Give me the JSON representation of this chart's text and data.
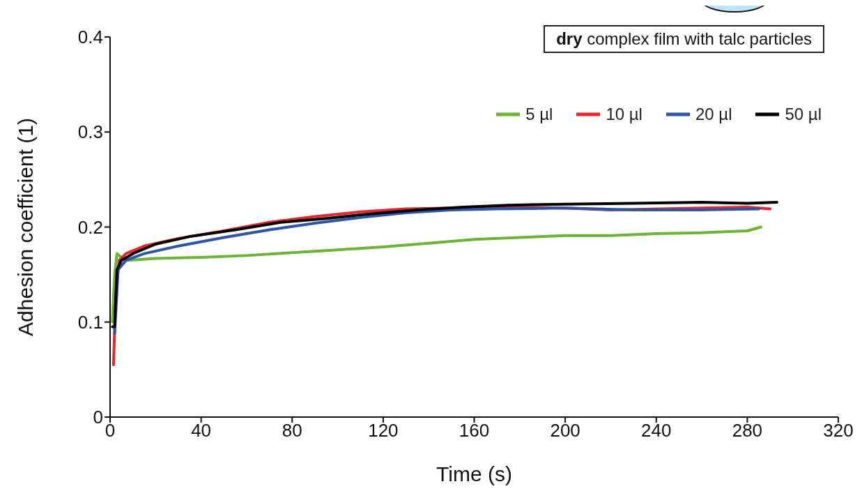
{
  "chart_data": {
    "type": "line",
    "xlabel": "Time (s)",
    "ylabel": "Adhesion coefficient (1)",
    "annotations": [
      "dry complex film with talc particles"
    ],
    "xlim": [
      0,
      320
    ],
    "xticks": [
      0,
      40,
      80,
      120,
      160,
      200,
      240,
      280,
      320
    ],
    "ylim": [
      0,
      0.4
    ],
    "yticks": [
      0,
      0.1,
      0.2,
      0.3,
      0.4
    ],
    "grid": false,
    "legend": "top right",
    "marker": "none",
    "line_style": "solid",
    "series": [
      {
        "name": "5 µl",
        "color": "#6ab533",
        "x": [
          1,
          2,
          3,
          5,
          8,
          20,
          40,
          60,
          80,
          100,
          120,
          140,
          160,
          180,
          200,
          220,
          240,
          260,
          280,
          286
        ],
        "values": [
          0.1,
          0.15,
          0.172,
          0.168,
          0.165,
          0.167,
          0.168,
          0.17,
          0.173,
          0.176,
          0.179,
          0.183,
          0.187,
          0.189,
          0.191,
          0.191,
          0.193,
          0.194,
          0.196,
          0.2
        ]
      },
      {
        "name": "10 µl",
        "color": "#e8262b",
        "x": [
          1.5,
          2.5,
          4,
          7,
          15,
          30,
          50,
          70,
          90,
          110,
          130,
          150,
          170,
          200,
          220,
          260,
          280,
          290
        ],
        "values": [
          0.055,
          0.13,
          0.165,
          0.172,
          0.18,
          0.188,
          0.196,
          0.205,
          0.211,
          0.216,
          0.219,
          0.22,
          0.221,
          0.22,
          0.218,
          0.22,
          0.221,
          0.219
        ]
      },
      {
        "name": "20 µl",
        "color": "#2d56a6",
        "x": [
          2,
          3.5,
          7,
          15,
          30,
          50,
          70,
          90,
          110,
          130,
          150,
          170,
          200,
          230,
          260,
          285
        ],
        "values": [
          0.088,
          0.155,
          0.165,
          0.172,
          0.18,
          0.189,
          0.197,
          0.204,
          0.21,
          0.215,
          0.218,
          0.219,
          0.22,
          0.218,
          0.218,
          0.219
        ]
      },
      {
        "name": "50 µl",
        "color": "#000000",
        "x": [
          1,
          2,
          3,
          5,
          10,
          20,
          35,
          55,
          75,
          95,
          115,
          135,
          155,
          175,
          200,
          230,
          260,
          280,
          293
        ],
        "values": [
          0.095,
          0.095,
          0.155,
          0.165,
          0.172,
          0.182,
          0.19,
          0.197,
          0.205,
          0.209,
          0.214,
          0.218,
          0.221,
          0.223,
          0.224,
          0.225,
          0.226,
          0.225,
          0.226
        ]
      }
    ]
  }
}
